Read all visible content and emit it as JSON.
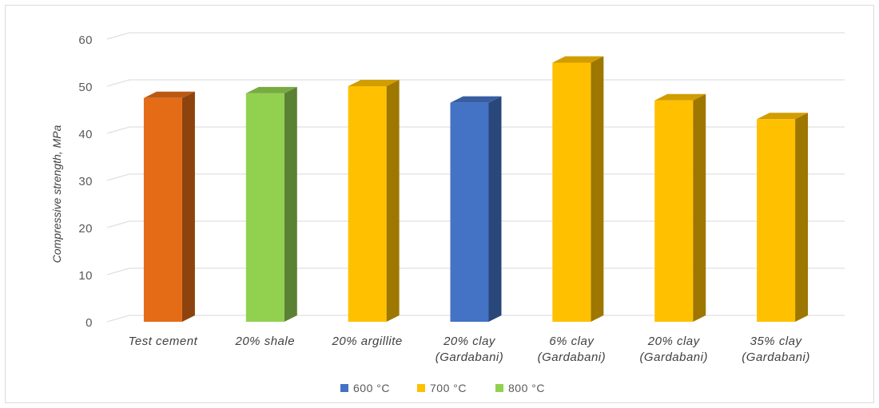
{
  "chart_data": {
    "type": "bar",
    "style": "3d-column",
    "title": "",
    "xlabel": "",
    "ylabel": "Compressive strength, MPa",
    "ylim": [
      0,
      60
    ],
    "yticks": [
      0,
      10,
      20,
      30,
      40,
      50,
      60
    ],
    "grid": true,
    "legend_position": "bottom",
    "categories": [
      [
        "Test cement"
      ],
      [
        "20% shale"
      ],
      [
        "20% argillite"
      ],
      [
        "20% clay",
        "(Gardabani)"
      ],
      [
        "6% clay",
        "(Gardabani)"
      ],
      [
        "20% clay",
        "(Gardabani)"
      ],
      [
        "35% clay",
        "(Gardabani)"
      ]
    ],
    "values": [
      47.5,
      48.5,
      50,
      46.5,
      55,
      47,
      43
    ],
    "bar_colors": [
      "#E46C17",
      "#92D050",
      "#FFC000",
      "#4472C4",
      "#FFC000",
      "#FFC000",
      "#FFC000"
    ],
    "legend": [
      {
        "label": "600 °C",
        "color": "#4472C4"
      },
      {
        "label": "700 °C",
        "color": "#FFC000"
      },
      {
        "label": "800 °C",
        "color": "#92D050"
      }
    ]
  }
}
